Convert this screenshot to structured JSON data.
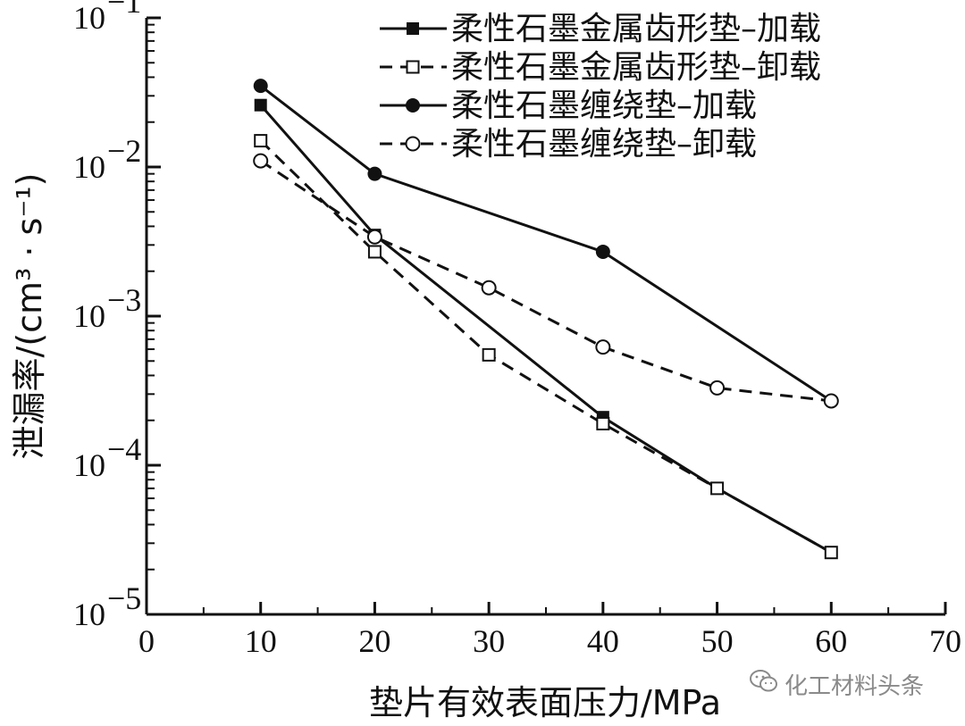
{
  "chart_data": {
    "type": "line",
    "xlabel": "垫片有效表面压力/MPa",
    "ylabel": "泄漏率/(cm³ · s⁻¹)",
    "xlim": [
      0,
      70
    ],
    "ylim": [
      1e-05,
      0.1
    ],
    "yscale": "log",
    "x_ticks": [
      "0",
      "10",
      "20",
      "30",
      "40",
      "50",
      "60",
      "70"
    ],
    "y_ticks": [
      {
        "base": "10",
        "exp": "−5"
      },
      {
        "base": "10",
        "exp": "−4"
      },
      {
        "base": "10",
        "exp": "−3"
      },
      {
        "base": "10",
        "exp": "−2"
      },
      {
        "base": "10",
        "exp": "−1"
      }
    ],
    "legend_position": "top-right",
    "series": [
      {
        "name": "柔性石墨金属齿形垫–加载",
        "line": "solid",
        "marker": "square-filled",
        "x": [
          10,
          20,
          40,
          50,
          60
        ],
        "y": [
          0.026,
          0.0035,
          0.00021,
          7e-05,
          2.6e-05
        ]
      },
      {
        "name": "柔性石墨金属齿形垫–卸载",
        "line": "dashed",
        "marker": "square-open",
        "x": [
          10,
          20,
          30,
          40,
          50,
          60
        ],
        "y": [
          0.015,
          0.0027,
          0.00055,
          0.00019,
          7e-05,
          2.6e-05
        ]
      },
      {
        "name": "柔性石墨缠绕垫–加载",
        "line": "solid",
        "marker": "circle-filled",
        "x": [
          10,
          20,
          40,
          60
        ],
        "y": [
          0.035,
          0.009,
          0.0027,
          0.00027
        ]
      },
      {
        "name": "柔性石墨缠绕垫–卸载",
        "line": "dashed",
        "marker": "circle-open",
        "x": [
          10,
          20,
          30,
          40,
          50,
          60
        ],
        "y": [
          0.011,
          0.0034,
          0.00155,
          0.00062,
          0.00033,
          0.00027
        ]
      }
    ]
  },
  "watermark": {
    "icon": "wechat-icon",
    "text": "化工材料头条"
  }
}
